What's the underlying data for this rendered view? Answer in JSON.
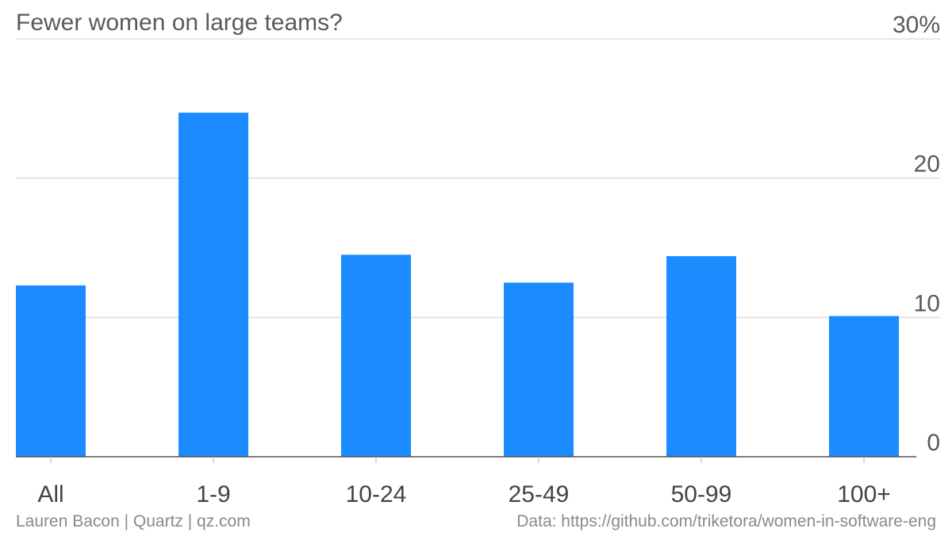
{
  "chart_data": {
    "type": "bar",
    "title": "Fewer women on large teams?",
    "categories": [
      "All",
      "1-9",
      "10-24",
      "25-49",
      "50-99",
      "100+"
    ],
    "values": [
      12.3,
      24.7,
      14.5,
      12.5,
      14.4,
      10.1
    ],
    "ylim": [
      0,
      30
    ],
    "yticks": [
      0,
      10,
      20,
      30
    ],
    "ytick_labels": [
      "0",
      "10",
      "20",
      "30%"
    ],
    "xlabel": "",
    "ylabel": "",
    "grid": true,
    "bar_color": "#1a8cff",
    "grid_color": "#dddddd",
    "axis_color": "#555555"
  },
  "footer": {
    "credit": "Lauren Bacon | Quartz | qz.com",
    "source": "Data: https://github.com/triketora/women-in-software-eng"
  }
}
